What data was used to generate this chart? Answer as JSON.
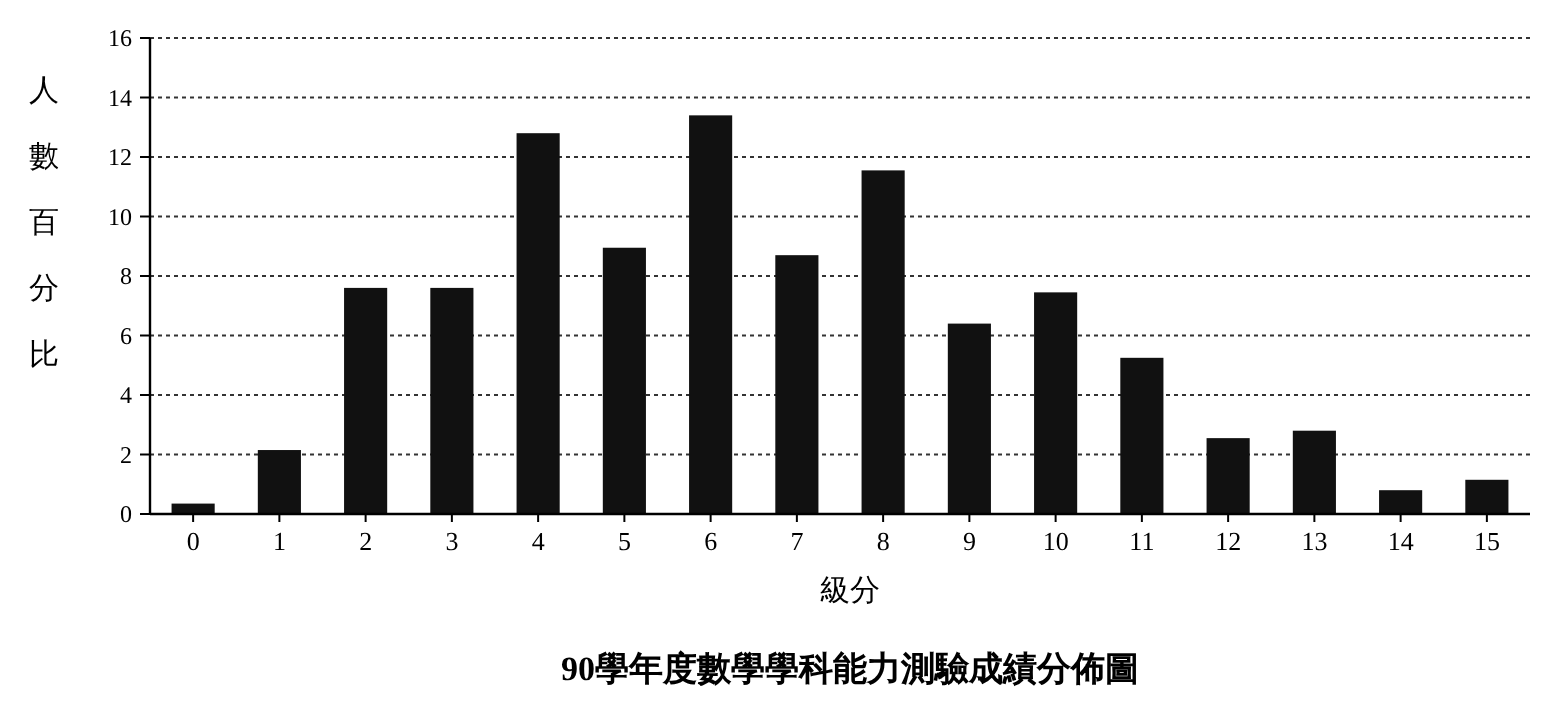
{
  "chart_data": {
    "type": "bar",
    "title": "90學年度數學學科能力測驗成績分佈圖",
    "xlabel": "級分",
    "ylabel": "人數百分比",
    "categories": [
      "0",
      "1",
      "2",
      "3",
      "4",
      "5",
      "6",
      "7",
      "8",
      "9",
      "10",
      "11",
      "12",
      "13",
      "14",
      "15"
    ],
    "values": [
      0.35,
      2.15,
      7.6,
      7.6,
      12.8,
      8.95,
      13.4,
      8.7,
      11.55,
      6.4,
      7.45,
      5.25,
      2.55,
      2.8,
      0.8,
      1.15
    ],
    "color": "#111111",
    "ylim": [
      0,
      16
    ],
    "yticks": [
      0,
      2,
      4,
      6,
      8,
      10,
      12,
      14,
      16
    ],
    "grid": "y"
  }
}
